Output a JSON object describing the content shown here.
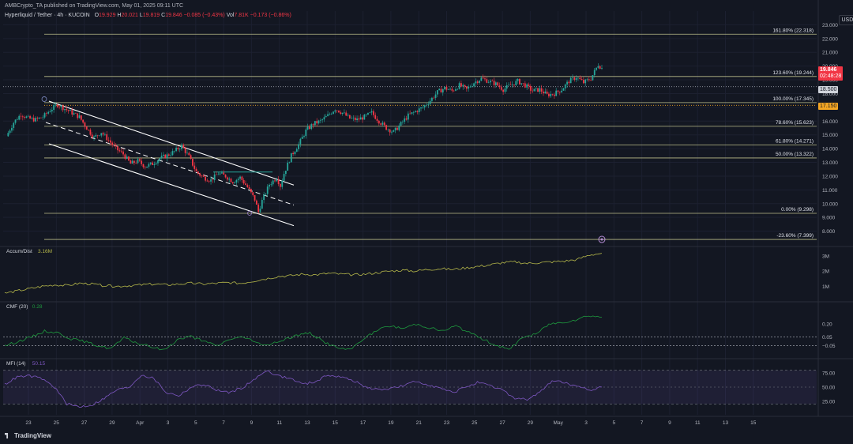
{
  "header": {
    "publisher": "AMBCrypto_TA published on TradingView.com, May 01, 2025 09:11 UTC",
    "symbol": "Hyperliquid / Tether · 4h · KUCOIN",
    "ohlc": {
      "o_label": "O",
      "o": "19.929",
      "h_label": "H",
      "h": "20.021",
      "l_label": "L",
      "l": "19.819",
      "c_label": "C",
      "c": "19.846",
      "change": "−0.085 (−0.43%)",
      "vol_label": "Vol",
      "vol": "7.81K",
      "vol_change": "−0.173 (−0.86%)"
    }
  },
  "currency": "USDT",
  "last_price": {
    "value": "19.846",
    "countdown": "02:48:28"
  },
  "price_badges": [
    "18.500",
    "17.150"
  ],
  "branding": "TradingView",
  "colors": {
    "bg": "#131722",
    "up": "#26a69a",
    "down": "#f23645",
    "fib": "#d8d89a",
    "channel": "#ffffff",
    "ad": "#b6b84a",
    "cmf": "#1e9a3e",
    "mfi": "#7e57c2"
  },
  "chart_data": [
    {
      "type": "candlestick",
      "symbol": "HYPE/USDT",
      "timeframe": "4h",
      "y_ticks": [
        8,
        9,
        10,
        11,
        12,
        13,
        14,
        15,
        16,
        17,
        18,
        19,
        20,
        21,
        22,
        23
      ],
      "y_tick_labels": [
        "8.000",
        "9.000",
        "10.000",
        "11.000",
        "12.000",
        "13.000",
        "14.000",
        "15.000",
        "16.000",
        "17.000",
        "18.000",
        "19.000",
        "20.000",
        "21.000",
        "22.000",
        "23.000"
      ],
      "ylim": [
        7.0,
        24.0
      ],
      "x_tick_labels": [
        "23",
        "25",
        "27",
        "29",
        "Apr",
        "3",
        "5",
        "7",
        "9",
        "11",
        "13",
        "15",
        "17",
        "19",
        "21",
        "23",
        "25",
        "27",
        "29",
        "May",
        "3",
        "5",
        "7",
        "9",
        "11",
        "13",
        "15"
      ],
      "fib_levels": [
        {
          "label": "161.80% (22.318)",
          "value": 22.318
        },
        {
          "label": "123.60% (19.244)",
          "value": 19.244
        },
        {
          "label": "100.00% (17.345)",
          "value": 17.345
        },
        {
          "label": "78.60% (15.623)",
          "value": 15.623
        },
        {
          "label": "61.80% (14.271)",
          "value": 14.271
        },
        {
          "label": "50.00% (13.322)",
          "value": 13.322
        },
        {
          "label": "0.00% (9.298)",
          "value": 9.298
        },
        {
          "label": "-23.60% (7.399)",
          "value": 7.399
        }
      ],
      "horizontal_lines": [
        18.5,
        17.15
      ],
      "close_path": [
        [
          0,
          14.9
        ],
        [
          4,
          15.9
        ],
        [
          8,
          16.5
        ],
        [
          12,
          16.2
        ],
        [
          16,
          16.1
        ],
        [
          20,
          16.3
        ],
        [
          24,
          16.8
        ],
        [
          28,
          17.2
        ],
        [
          32,
          16.9
        ],
        [
          36,
          16.6
        ],
        [
          40,
          16.3
        ],
        [
          44,
          15.5
        ],
        [
          48,
          14.8
        ],
        [
          52,
          15.2
        ],
        [
          56,
          14.6
        ],
        [
          60,
          14.0
        ],
        [
          64,
          13.6
        ],
        [
          68,
          12.9
        ],
        [
          72,
          13.1
        ],
        [
          76,
          12.7
        ],
        [
          80,
          12.9
        ],
        [
          84,
          13.3
        ],
        [
          88,
          13.5
        ],
        [
          92,
          13.8
        ],
        [
          96,
          14.2
        ],
        [
          100,
          13.4
        ],
        [
          104,
          12.3
        ],
        [
          108,
          11.9
        ],
        [
          112,
          11.7
        ],
        [
          116,
          12.2
        ],
        [
          120,
          12.0
        ],
        [
          124,
          11.6
        ],
        [
          128,
          11.9
        ],
        [
          132,
          11.2
        ],
        [
          136,
          10.3
        ],
        [
          138,
          9.4
        ],
        [
          140,
          10.2
        ],
        [
          144,
          11.4
        ],
        [
          148,
          11.9
        ],
        [
          150,
          11.3
        ],
        [
          152,
          12.2
        ],
        [
          156,
          13.5
        ],
        [
          160,
          14.3
        ],
        [
          164,
          15.3
        ],
        [
          168,
          15.8
        ],
        [
          172,
          16.0
        ],
        [
          176,
          16.4
        ],
        [
          180,
          16.9
        ],
        [
          184,
          16.6
        ],
        [
          188,
          16.2
        ],
        [
          192,
          16.1
        ],
        [
          196,
          16.3
        ],
        [
          200,
          16.6
        ],
        [
          204,
          16.0
        ],
        [
          208,
          15.5
        ],
        [
          212,
          15.2
        ],
        [
          216,
          15.8
        ],
        [
          220,
          16.4
        ],
        [
          224,
          16.7
        ],
        [
          228,
          17.0
        ],
        [
          232,
          17.5
        ],
        [
          236,
          18.1
        ],
        [
          240,
          18.4
        ],
        [
          244,
          18.2
        ],
        [
          248,
          18.6
        ],
        [
          252,
          18.3
        ],
        [
          256,
          18.8
        ],
        [
          260,
          19.1
        ],
        [
          264,
          18.9
        ],
        [
          268,
          18.7
        ],
        [
          272,
          18.3
        ],
        [
          276,
          18.6
        ],
        [
          280,
          18.9
        ],
        [
          284,
          18.6
        ],
        [
          288,
          18.2
        ],
        [
          292,
          18.3
        ],
        [
          296,
          17.9
        ],
        [
          300,
          18.0
        ],
        [
          304,
          18.3
        ],
        [
          308,
          18.9
        ],
        [
          312,
          19.2
        ],
        [
          316,
          18.8
        ],
        [
          320,
          19.1
        ],
        [
          324,
          20.1
        ],
        [
          326,
          19.846
        ]
      ],
      "annotation_channel": "descending regression channel (Mar 24 – Apr 10)"
    },
    {
      "type": "line",
      "title": "Accum/Dist",
      "value_label": "3.16M",
      "y_tick_labels": [
        "3M",
        "2M",
        "1M"
      ],
      "y_ticks": [
        3,
        2,
        1
      ],
      "ylim": [
        0.2,
        3.4
      ],
      "values": [
        0.55,
        0.7,
        0.85,
        1.0,
        1.1,
        1.05,
        1.2,
        1.15,
        1.05,
        1.0,
        1.05,
        1.1,
        1.15,
        1.1,
        1.15,
        1.2,
        1.15,
        1.2,
        1.25,
        1.2,
        1.35,
        1.5,
        1.65,
        1.7,
        1.8,
        1.75,
        1.85,
        1.8,
        1.75,
        1.8,
        1.9,
        2.0,
        2.05,
        2.0,
        2.1,
        2.15,
        2.1,
        2.2,
        2.3,
        2.4,
        2.55,
        2.6,
        2.5,
        2.55,
        2.6,
        2.65,
        2.75,
        3.05,
        3.16
      ]
    },
    {
      "type": "line",
      "title": "CMF (20)",
      "value_label": "0.28",
      "y_tick_labels": [
        "0.20",
        "0.05",
        "−0.05"
      ],
      "y_ticks": [
        0.2,
        0.05,
        -0.05
      ],
      "ylim": [
        -0.18,
        0.42
      ],
      "values": [
        -0.05,
        0.0,
        0.05,
        0.12,
        0.1,
        0.03,
        0.0,
        -0.05,
        -0.08,
        0.04,
        -0.02,
        -0.06,
        -0.1,
        0.02,
        0.06,
        0.0,
        -0.05,
        0.03,
        0.05,
        -0.02,
        -0.04,
        0.02,
        0.07,
        0.1,
        0.0,
        -0.07,
        -0.1,
        0.03,
        0.12,
        0.18,
        0.15,
        0.2,
        0.16,
        0.12,
        0.18,
        0.1,
        0.03,
        -0.04,
        -0.1,
        0.05,
        0.08,
        0.2,
        0.22,
        0.25,
        0.3,
        0.28
      ]
    },
    {
      "type": "line",
      "title": "MFI (14)",
      "value_label": "50.15",
      "y_tick_labels": [
        "75.00",
        "50.00",
        "25.00"
      ],
      "y_ticks": [
        75,
        50,
        25
      ],
      "band": [
        20,
        80
      ],
      "ylim": [
        5,
        95
      ],
      "values": [
        55,
        68,
        70,
        65,
        50,
        20,
        15,
        18,
        30,
        45,
        50,
        72,
        65,
        40,
        35,
        50,
        55,
        45,
        40,
        48,
        62,
        80,
        70,
        65,
        55,
        60,
        72,
        68,
        62,
        50,
        45,
        48,
        52,
        60,
        55,
        48,
        40,
        50,
        58,
        52,
        45,
        30,
        28,
        40,
        62,
        58,
        50,
        45,
        50
      ]
    }
  ]
}
